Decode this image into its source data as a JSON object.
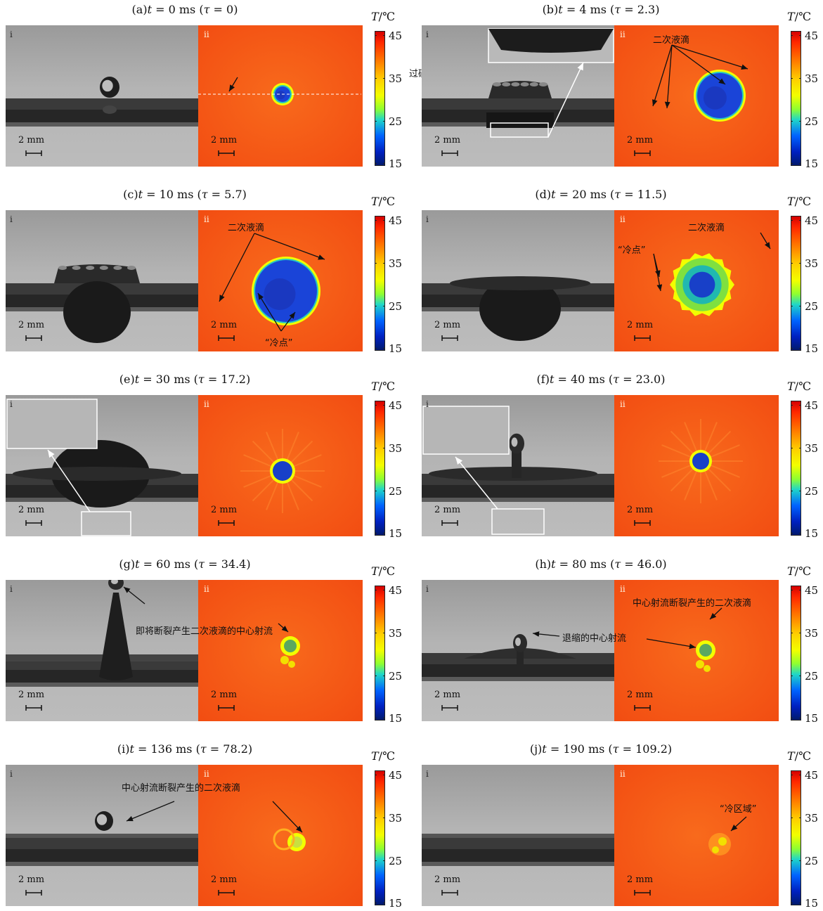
{
  "colorbar": {
    "title_var": "T",
    "title_unit": "/℃",
    "ticks": [
      "45",
      "35",
      "25",
      "15"
    ]
  },
  "labels": {
    "left_image": "i",
    "right_image": "ii",
    "scale_text": "2 mm"
  },
  "panels": [
    {
      "id": "a",
      "caption_prefix": "(a)",
      "t": "0",
      "tau": "0",
      "annotations": [
        "过碰撞点的中心线"
      ]
    },
    {
      "id": "b",
      "caption_prefix": "(b)",
      "t": "4",
      "tau": "2.3",
      "annotations": [
        "二次液滴"
      ]
    },
    {
      "id": "c",
      "caption_prefix": "(c)",
      "t": "10",
      "tau": "5.7",
      "annotations": [
        "二次液滴",
        "“冷点”"
      ]
    },
    {
      "id": "d",
      "caption_prefix": "(d)",
      "t": "20",
      "tau": "11.5",
      "annotations": [
        "二次液滴",
        "“冷点”"
      ]
    },
    {
      "id": "e",
      "caption_prefix": "(e)",
      "t": "30",
      "tau": "17.2",
      "annotations": []
    },
    {
      "id": "f",
      "caption_prefix": "(f)",
      "t": "40",
      "tau": "23.0",
      "annotations": []
    },
    {
      "id": "g",
      "caption_prefix": "(g)",
      "t": "60",
      "tau": "34.4",
      "annotations": [
        "即将断裂产生二次液滴的中心射流"
      ]
    },
    {
      "id": "h",
      "caption_prefix": "(h)",
      "t": "80",
      "tau": "46.0",
      "annotations": [
        "中心射流断裂产生的二次液滴",
        "退缩的中心射流"
      ]
    },
    {
      "id": "i",
      "caption_prefix": "(i)",
      "t": "136",
      "tau": "78.2",
      "annotations": [
        "中心射流断裂产生的二次液滴"
      ]
    },
    {
      "id": "j",
      "caption_prefix": "(j)",
      "t": "190",
      "tau": "109.2",
      "annotations": [
        "“冷区域”"
      ]
    }
  ]
}
